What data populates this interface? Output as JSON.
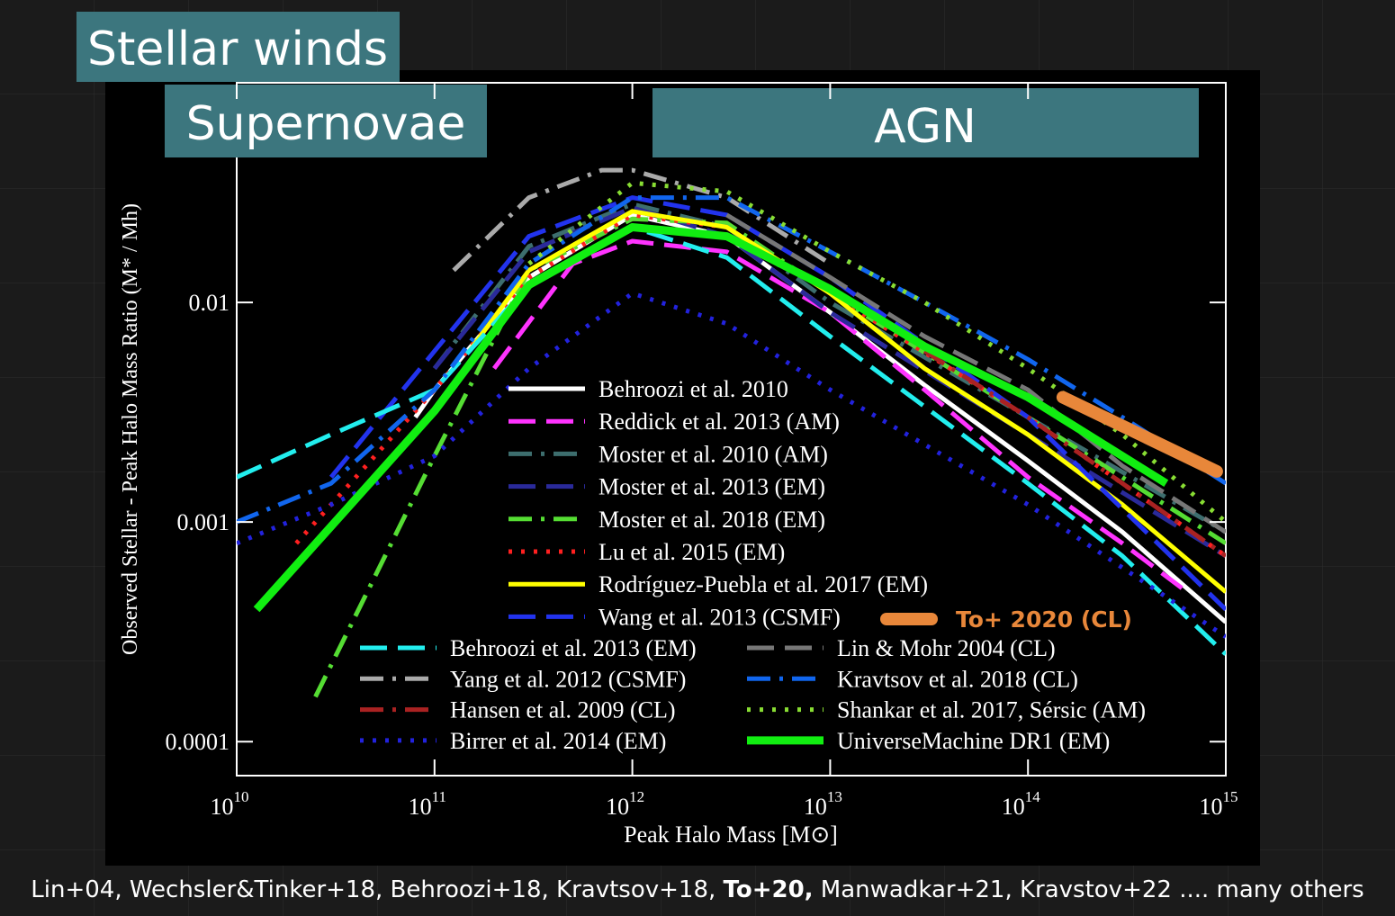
{
  "chart_data": {
    "type": "line",
    "log_x": true,
    "log_y": true,
    "xlabel": "Peak Halo Mass [M⊙]",
    "ylabel": "Observed Stellar - Peak Halo Mass Ratio (M* / Mh)",
    "xlim": [
      10000000000,
      1000000000000000
    ],
    "ylim": [
      7e-05,
      0.1
    ],
    "xticks": [
      {
        "value": 10000000000,
        "label": "10",
        "power": "10"
      },
      {
        "value": 100000000000,
        "label": "10",
        "power": "11"
      },
      {
        "value": 1000000000000,
        "label": "10",
        "power": "12"
      },
      {
        "value": 10000000000000,
        "label": "10",
        "power": "13"
      },
      {
        "value": 100000000000000,
        "label": "10",
        "power": "14"
      },
      {
        "value": 1000000000000000,
        "label": "10",
        "power": "15"
      }
    ],
    "yticks": [
      0.0001,
      0.001,
      0.01
    ],
    "annotations": [
      "Stellar winds",
      "Supernovae",
      "AGN"
    ],
    "caption": [
      "Lin+04, Wechsler&Tinker+18, Behroozi+18, Kravtsov+18, ",
      "To+20,",
      " Manwadkar+21, Kravstov+22 .... many others"
    ],
    "series": [
      {
        "name": "Behroozi et al. 2010",
        "color": "#ffffff",
        "dash": "solid",
        "x": [
          80000000000,
          100000000000,
          300000000000,
          1000000000000,
          3000000000000,
          10000000000000,
          30000000000000,
          100000000000000,
          300000000000000,
          1000000000000000
        ],
        "values": [
          0.003,
          0.004,
          0.013,
          0.025,
          0.02,
          0.009,
          0.0042,
          0.0019,
          0.0009,
          0.00035
        ]
      },
      {
        "name": "Reddick et al. 2013 (AM)",
        "color": "#ff33ff",
        "dash": "dashed",
        "x": [
          200000000000,
          500000000000,
          1000000000000,
          3000000000000,
          10000000000000,
          30000000000000,
          100000000000000,
          300000000000000,
          600000000000000
        ],
        "values": [
          0.005,
          0.015,
          0.019,
          0.017,
          0.009,
          0.004,
          0.0016,
          0.0008,
          0.0005
        ]
      },
      {
        "name": "Moster et al. 2010 (AM)",
        "color": "#3d6e6e",
        "dash": "dashdot",
        "x": [
          100000000000,
          300000000000,
          1000000000000,
          3000000000000,
          10000000000000,
          100000000000000,
          1000000000000000
        ],
        "values": [
          0.005,
          0.018,
          0.028,
          0.022,
          0.01,
          0.003,
          0.0009
        ]
      },
      {
        "name": "Moster et al. 2013 (EM)",
        "color": "#2a2a9a",
        "dash": "dashed",
        "x": [
          100000000000,
          300000000000,
          1000000000000,
          3000000000000,
          10000000000000,
          100000000000000,
          1000000000000000
        ],
        "values": [
          0.005,
          0.017,
          0.027,
          0.02,
          0.009,
          0.0025,
          0.0007
        ]
      },
      {
        "name": "Moster et al. 2018 (EM)",
        "color": "#55dd33",
        "dash": "dashdot",
        "x": [
          25000000000,
          100000000000,
          300000000000,
          1000000000000,
          3000000000000,
          10000000000000,
          100000000000000,
          1000000000000000
        ],
        "values": [
          0.00016,
          0.002,
          0.014,
          0.024,
          0.023,
          0.011,
          0.003,
          0.0008
        ]
      },
      {
        "name": "Lu et al. 2015 (EM)",
        "color": "#ff2020",
        "dash": "dotted",
        "x": [
          20000000000,
          50000000000,
          100000000000,
          300000000000,
          1000000000000,
          3000000000000,
          10000000000000,
          100000000000000,
          1000000000000000
        ],
        "values": [
          0.0008,
          0.002,
          0.004,
          0.013,
          0.025,
          0.022,
          0.011,
          0.003,
          0.0007
        ]
      },
      {
        "name": "Rodríguez-Puebla et al. 2017 (EM)",
        "color": "#ffff00",
        "dash": "solid",
        "x": [
          150000000000,
          300000000000,
          1000000000000,
          3000000000000,
          10000000000000,
          30000000000000,
          100000000000000,
          300000000000000,
          1000000000000000
        ],
        "values": [
          0.006,
          0.014,
          0.026,
          0.022,
          0.011,
          0.005,
          0.0025,
          0.0012,
          0.00048
        ]
      },
      {
        "name": "Wang et al. 2013 (CSMF)",
        "color": "#2233ee",
        "dash": "dashed",
        "x": [
          30000000000,
          100000000000,
          300000000000,
          1000000000000,
          3000000000000,
          10000000000000,
          100000000000000,
          1000000000000000
        ],
        "values": [
          0.0016,
          0.006,
          0.02,
          0.03,
          0.025,
          0.013,
          0.003,
          0.0004
        ]
      },
      {
        "name": "Behroozi et al. 2013 (EM)",
        "color": "#22eeee",
        "dash": "dashed",
        "x": [
          10000000000,
          30000000000,
          100000000000,
          300000000000,
          1000000000000,
          3000000000000,
          10000000000000,
          100000000000000,
          300000000000000,
          1000000000000000
        ],
        "values": [
          0.0016,
          0.0025,
          0.004,
          0.012,
          0.022,
          0.016,
          0.007,
          0.0015,
          0.0007,
          0.00025
        ]
      },
      {
        "name": "Lin & Mohr 2004 (CL)",
        "color": "#777777",
        "dash": "dashed",
        "x": [
          3000000000000,
          10000000000000,
          30000000000000,
          100000000000000,
          300000000000000,
          1000000000000000
        ],
        "values": [
          0.025,
          0.013,
          0.007,
          0.004,
          0.0018,
          0.0009
        ]
      },
      {
        "name": "Yang et al. 2012 (CSMF)",
        "color": "#aaaaaa",
        "dash": "dashdot",
        "x": [
          125000000000,
          300000000000,
          700000000000,
          1000000000000,
          3000000000000,
          10000000000000
        ],
        "values": [
          0.014,
          0.03,
          0.04,
          0.04,
          0.03,
          0.015
        ]
      },
      {
        "name": "Kravtsov et al. 2018 (CL)",
        "color": "#1166ee",
        "dash": "dashdot",
        "x": [
          10000000000,
          30000000000,
          100000000000,
          300000000000,
          1000000000000,
          3000000000000,
          10000000000000,
          30000000000000,
          100000000000000,
          300000000000000,
          1000000000000000
        ],
        "values": [
          0.001,
          0.0015,
          0.004,
          0.015,
          0.03,
          0.03,
          0.017,
          0.01,
          0.0055,
          0.003,
          0.0015
        ]
      },
      {
        "name": "Hansen et al. 2009 (CL)",
        "color": "#aa2222",
        "dash": "dashdot",
        "x": [
          30000000000000,
          100000000000000,
          300000000000000,
          1000000000000000
        ],
        "values": [
          0.006,
          0.003,
          0.0015,
          0.0007
        ]
      },
      {
        "name": "Shankar et al. 2017, Sérsic (AM)",
        "color": "#88dd33",
        "dash": "dotted",
        "x": [
          300000000000,
          1000000000000,
          3000000000000,
          10000000000000,
          30000000000000,
          100000000000000,
          300000000000000,
          1000000000000000
        ],
        "values": [
          0.015,
          0.035,
          0.032,
          0.017,
          0.01,
          0.005,
          0.0025,
          0.001
        ]
      },
      {
        "name": "Birrer et al. 2014 (EM)",
        "color": "#2222dd",
        "dash": "dotted",
        "x": [
          10000000000,
          30000000000,
          100000000000,
          300000000000,
          1000000000000,
          3000000000000,
          10000000000000,
          100000000000000,
          1000000000000000
        ],
        "values": [
          0.0008,
          0.0012,
          0.002,
          0.005,
          0.011,
          0.008,
          0.004,
          0.0012,
          0.0003
        ]
      },
      {
        "name": "UniverseMachine DR1 (EM)",
        "color": "#11ee11",
        "dash": "solid",
        "width": 9,
        "x": [
          12600000000,
          100000000000,
          300000000000,
          1000000000000,
          3000000000000,
          10000000000000,
          30000000000000,
          100000000000000,
          500000000000000
        ],
        "values": [
          0.0004,
          0.0032,
          0.012,
          0.022,
          0.02,
          0.0115,
          0.0063,
          0.0037,
          0.0015
        ]
      },
      {
        "name": "To+ 2020 (CL)",
        "color": "#e8873a",
        "dash": "solid",
        "width": 14,
        "x": [
          150000000000000,
          900000000000000
        ],
        "values": [
          0.0037,
          0.0017
        ]
      }
    ]
  }
}
